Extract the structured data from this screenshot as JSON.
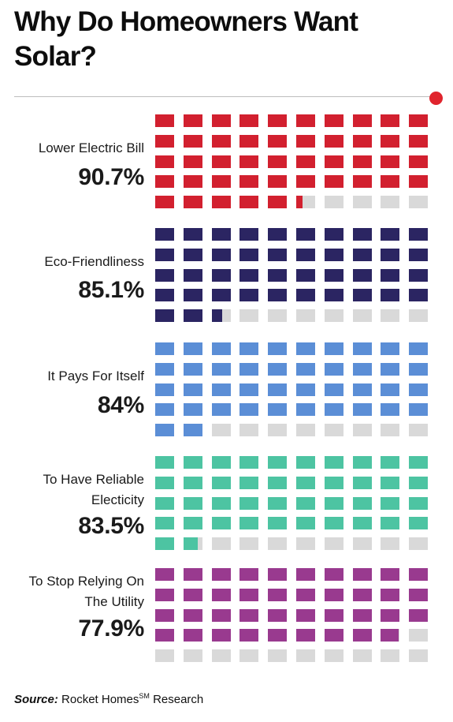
{
  "title": "Why Do Homeowners Want Solar?",
  "source": {
    "label": "Source:",
    "text": "Rocket Homes",
    "superscript": "SM",
    "suffix": " Research"
  },
  "colors": {
    "empty": "#d9d9d9",
    "accent_dot": "#e0242d"
  },
  "chart_data": {
    "type": "waffle",
    "cells_per_chart": 50,
    "rows": 5,
    "columns": 10,
    "unit": "%",
    "series": [
      {
        "label": "Lower Electric Bill",
        "value_text": "90.7%",
        "value": 90.7,
        "color": "#d2202f"
      },
      {
        "label": "Eco-Friendliness",
        "value_text": "85.1%",
        "value": 85.1,
        "color": "#2b2562"
      },
      {
        "label": "It Pays For Itself",
        "value_text": "84%",
        "value": 84,
        "color": "#5b8ed6"
      },
      {
        "label": "To Have Reliable Electicity",
        "value_text": "83.5%",
        "value": 83.5,
        "color": "#4dc4a2"
      },
      {
        "label": "To Stop Relying On The Utility",
        "value_text": "77.9%",
        "value": 77.9,
        "color": "#993a8f"
      }
    ]
  }
}
